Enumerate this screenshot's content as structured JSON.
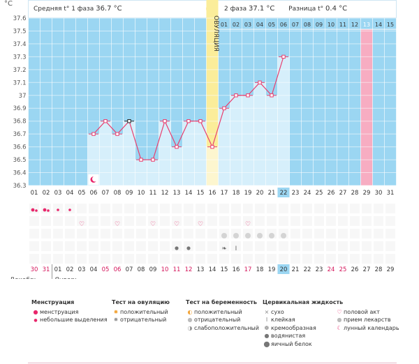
{
  "header": {
    "phase1_label": "Средняя t° 1 фаза",
    "phase1_value": "36.7 °C",
    "phase2_label": "2 фаза",
    "phase2_value": "37.1 °C",
    "diff_label": "Разница t°",
    "diff_value": "0.4 °C"
  },
  "chart_data": {
    "type": "line",
    "title": "",
    "ylabel": "°C",
    "ylim": [
      36.3,
      37.6
    ],
    "yticks": [
      "37.6",
      "37.5",
      "37.4",
      "37.3",
      "37.2",
      "37.1",
      "37",
      "36.9",
      "36.8",
      "36.7",
      "36.6",
      "36.5",
      "36.4",
      "36.3"
    ],
    "days": [
      "01",
      "02",
      "03",
      "04",
      "05",
      "06",
      "07",
      "08",
      "09",
      "10",
      "11",
      "12",
      "13",
      "14",
      "15",
      "16",
      "17",
      "18",
      "19",
      "20",
      "21",
      "22",
      "23",
      "24",
      "25",
      "26",
      "27",
      "28",
      "29",
      "30",
      "31"
    ],
    "temperatures": [
      null,
      null,
      null,
      null,
      null,
      36.7,
      36.8,
      36.7,
      36.8,
      36.5,
      36.5,
      36.8,
      36.6,
      36.8,
      36.8,
      36.6,
      36.9,
      37.0,
      37.0,
      37.1,
      37.0,
      37.3,
      null,
      null,
      null,
      null,
      null,
      null,
      null,
      null,
      null
    ],
    "ovulation_label": "ОВУЛЯЦИЯ",
    "ovulation_day": 16,
    "phase2_days": [
      "01",
      "02",
      "03",
      "04",
      "05",
      "06",
      "07",
      "08",
      "09",
      "10",
      "11",
      "12",
      "13",
      "14",
      "15"
    ],
    "highlight_phase2_day": 13,
    "current_day": 22,
    "current_date_day": 20,
    "dates": [
      "30",
      "31",
      "01",
      "02",
      "03",
      "04",
      "05",
      "06",
      "07",
      "08",
      "09",
      "10",
      "11",
      "12",
      "13",
      "14",
      "15",
      "16",
      "17",
      "18",
      "19",
      "20",
      "21",
      "22",
      "23",
      "24",
      "25",
      "26",
      "27",
      "28",
      "29"
    ],
    "red_date_indices": [
      0,
      1,
      6,
      7,
      11,
      12,
      13,
      18,
      25,
      26
    ],
    "month_left": "Декабрь",
    "month_right": "Январь"
  },
  "legend": {
    "menstruation": {
      "title": "Менструация",
      "items": [
        "менструация",
        "небольшие выделения"
      ]
    },
    "ovulation_test": {
      "title": "Тест на овуляцию",
      "items": [
        "положительный",
        "отрицательный"
      ]
    },
    "pregnancy_test": {
      "title": "Тест на беременность",
      "items": [
        "положительный",
        "отрицательный",
        "слабоположительный"
      ]
    },
    "cervical": {
      "title": "Цервикальная жидкость",
      "items": [
        "сухо",
        "клейкая",
        "кремообразная",
        "водянистая",
        "яичный белок"
      ]
    },
    "other": {
      "items": [
        "половой акт",
        "прием лекарств",
        "лунный календарь"
      ]
    }
  },
  "colors": {
    "sky": "#9bd6f2",
    "column": "#d6effb",
    "ovulation": "#fbed9a",
    "line": "#e83f6f",
    "today": "#9bd6f2",
    "pink": "#f7adc2"
  }
}
